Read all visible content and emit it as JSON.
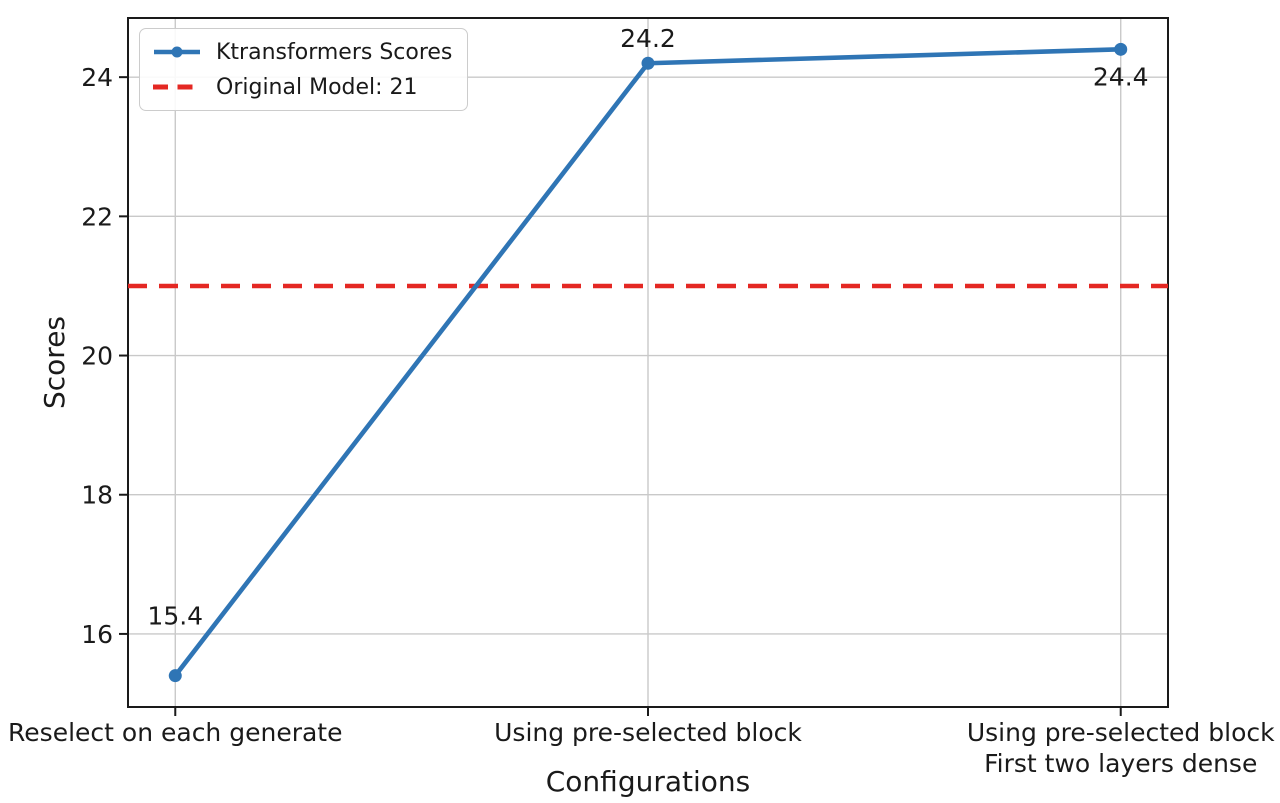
{
  "chart_data": {
    "type": "line",
    "title": "",
    "xlabel": "Configurations",
    "ylabel": "Scores",
    "categories": [
      "Reselect on each generate",
      "Using pre-selected block",
      "Using pre-selected block\nFirst two layers dense"
    ],
    "series": [
      {
        "name": "Ktransformers Scores",
        "values": [
          15.4,
          24.2,
          24.4
        ],
        "color": "#2f75b5",
        "marker": "circle"
      }
    ],
    "point_labels": [
      "15.4",
      "24.2",
      "24.4"
    ],
    "reference_line": {
      "label": "Original Model: 21",
      "value": 21,
      "color": "#e42823",
      "style": "dashed"
    },
    "yticks": [
      16,
      18,
      20,
      22,
      24
    ],
    "ylim": [
      14.95,
      24.85
    ],
    "grid": true,
    "grid_color": "#c9c9c9",
    "axis_color": "#1a1a1a",
    "text_color": "#1a1a1a",
    "legend_position": "upper left"
  }
}
